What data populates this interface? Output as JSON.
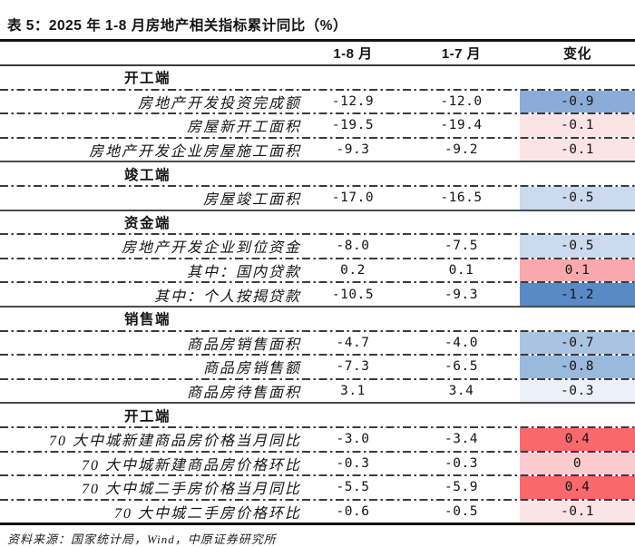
{
  "chart_data": {
    "type": "table",
    "title": "表 5：2025 年 1-8 月房地产相关指标累计同比（%）",
    "columns": [
      "",
      "1-8 月",
      "1-7 月",
      "变化"
    ],
    "color_scale": {
      "min_color": "#5A8AC6",
      "mid_color": "#FCFCFF",
      "max_color": "#F8696B",
      "min_value": -1.2,
      "max_value": 0.4,
      "note": "blue = negative change vs prior period, red = positive change"
    },
    "sections": [
      {
        "label": "开工端",
        "rows": [
          {
            "label": "房地产开发投资完成额",
            "aug": "-12.9",
            "jul": "-12.0",
            "change": "-0.9",
            "change_color": "#8BACD7"
          },
          {
            "label": "房屋新开工面积",
            "aug": "-19.5",
            "jul": "-19.4",
            "change": "-0.1",
            "change_color": "#FBE3E6"
          },
          {
            "label": "房地产开发企业房屋施工面积",
            "aug": "-9.3",
            "jul": "-9.2",
            "change": "-0.1",
            "change_color": "#FBE3E6"
          }
        ]
      },
      {
        "label": "竣工端",
        "rows": [
          {
            "label": "房屋竣工面积",
            "aug": "-17.0",
            "jul": "-16.5",
            "change": "-0.5",
            "change_color": "#CBDAEE"
          }
        ]
      },
      {
        "label": "资金端",
        "rows": [
          {
            "label": "房地产开发企业到位资金",
            "aug": "-8.0",
            "jul": "-7.5",
            "change": "-0.5",
            "change_color": "#CBDAEE"
          },
          {
            "label": "其中：国内贷款",
            "aug": "0.2",
            "jul": "0.1",
            "change": "0.1",
            "change_color": "#F9A8AC"
          },
          {
            "label": "其中：个人按揭贷款",
            "aug": "-10.5",
            "jul": "-9.3",
            "change": "-1.2",
            "change_color": "#5A8AC6"
          }
        ]
      },
      {
        "label": "销售端",
        "rows": [
          {
            "label": "商品房销售面积",
            "aug": "-4.7",
            "jul": "-4.0",
            "change": "-0.7",
            "change_color": "#ABC3E3"
          },
          {
            "label": "商品房销售额",
            "aug": "-7.3",
            "jul": "-6.5",
            "change": "-0.8",
            "change_color": "#9BB8DD"
          },
          {
            "label": "商品房待售面积",
            "aug": "3.1",
            "jul": "3.4",
            "change": "-0.3",
            "change_color": "#ECF1F9"
          }
        ]
      },
      {
        "label": "开工端",
        "rows": [
          {
            "label": "70 大中城新建商品房价格当月同比",
            "aug": "-3.0",
            "jul": "-3.4",
            "change": "0.4",
            "change_color": "#F8696B"
          },
          {
            "label": "70 大中城新建商品房价格环比",
            "aug": "-0.3",
            "jul": "-0.3",
            "change": "0",
            "change_color": "#FBCBCE"
          },
          {
            "label": "70 大中城二手房价格当月同比",
            "aug": "-5.5",
            "jul": "-5.9",
            "change": "0.4",
            "change_color": "#F8696B"
          },
          {
            "label": "70 大中城二手房价格环比",
            "aug": "-0.6",
            "jul": "-0.5",
            "change": "-0.1",
            "change_color": "#FBE3E6"
          }
        ]
      }
    ],
    "source": "资料来源：国家统计局，Wind，中原证券研究所"
  }
}
